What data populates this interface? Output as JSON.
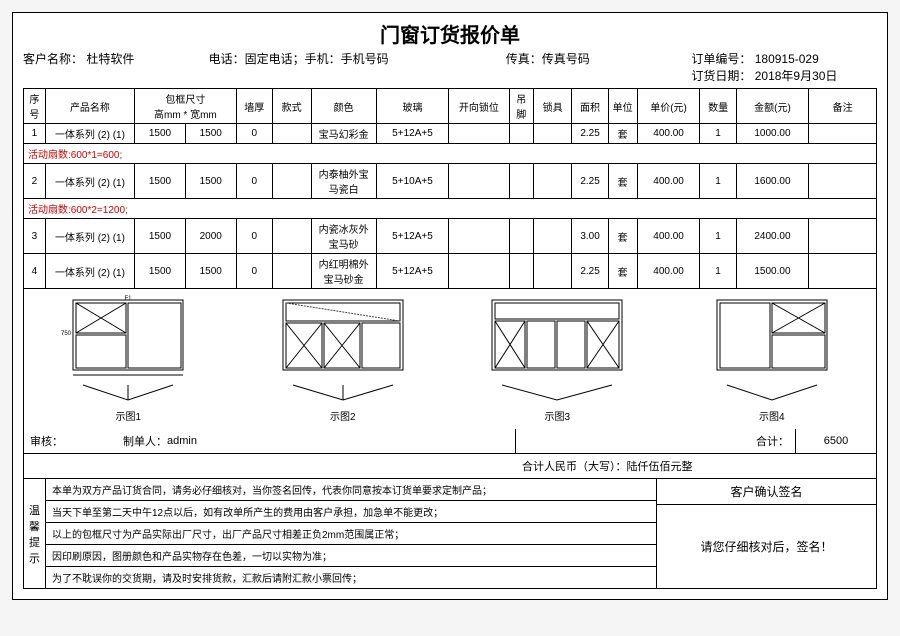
{
  "title": "门窗订货报价单",
  "header": {
    "customer_label": "客户名称：",
    "customer": "杜特软件",
    "tel_label": "电话：固定电话；手机：手机号码",
    "fax_label": "传真：传真号码",
    "order_no_label": "订单编号：",
    "order_no": "180915-029",
    "order_date_label": "订货日期：",
    "order_date": "2018年9月30日"
  },
  "columns": {
    "seq": "序号",
    "name": "产品名称",
    "frame_dim": "包框尺寸",
    "frame_dim_sub": "高mm * 宽mm",
    "wall": "墙厚",
    "style": "款式",
    "color": "颜色",
    "glass": "玻璃",
    "direction": "开向锁位",
    "foot": "吊脚",
    "lock": "锁具",
    "area": "面积",
    "unit": "单位",
    "unit_price": "单价(元)",
    "qty": "数量",
    "amount": "金额(元)",
    "remark": "备注"
  },
  "rows": [
    {
      "seq": "1",
      "name": "一体系列 (2) (1)",
      "h": "1500",
      "w": "1500",
      "wall": "0",
      "style": "",
      "color": "宝马幻彩金",
      "glass": "5+12A+5",
      "dir": "",
      "foot": "",
      "lock": "",
      "area": "2.25",
      "unit": "套",
      "price": "400.00",
      "qty": "1",
      "amount": "1000.00",
      "remark": ""
    },
    {
      "seq": "2",
      "name": "一体系列 (2) (1)",
      "h": "1500",
      "w": "1500",
      "wall": "0",
      "style": "",
      "color": "内泰柚外宝马瓷白",
      "glass": "5+10A+5",
      "dir": "",
      "foot": "",
      "lock": "",
      "area": "2.25",
      "unit": "套",
      "price": "400.00",
      "qty": "1",
      "amount": "1600.00",
      "remark": ""
    },
    {
      "seq": "3",
      "name": "一体系列 (2) (1)",
      "h": "1500",
      "w": "2000",
      "wall": "0",
      "style": "",
      "color": "内瓷冰灰外宝马砂",
      "glass": "5+12A+5",
      "dir": "",
      "foot": "",
      "lock": "",
      "area": "3.00",
      "unit": "套",
      "price": "400.00",
      "qty": "1",
      "amount": "2400.00",
      "remark": ""
    },
    {
      "seq": "4",
      "name": "一体系列 (2) (1)",
      "h": "1500",
      "w": "1500",
      "wall": "0",
      "style": "",
      "color": "内红明棉外宝马砂金",
      "glass": "5+12A+5",
      "dir": "",
      "foot": "",
      "lock": "",
      "area": "2.25",
      "unit": "套",
      "price": "400.00",
      "qty": "1",
      "amount": "1500.00",
      "remark": ""
    }
  ],
  "note1": "活动扇数:600*1=600;",
  "note2": "活动扇数:600*2=1200;",
  "diagrams": [
    "示图1",
    "示图2",
    "示图3",
    "示图4"
  ],
  "totals": {
    "total_label": "合计：",
    "total": "6500",
    "audit": "审核：",
    "maker_label": "制单人：",
    "maker": "admin",
    "rmb_label": "合计人民币（大写）：",
    "rmb": "陆仟伍佰元整"
  },
  "tips_label": "温馨提示",
  "tips": [
    "本单为双方产品订货合同，请务必仔细核对，当你签名回传，代表你同意按本订货单要求定制产品；",
    "当天下单至第二天中午12点以后，如有改单所产生的费用由客户承担，加急单不能更改；",
    "以上的包框尺寸为产品实际出厂尺寸，出厂产品尺寸相差正负2mm范围属正常；",
    "因印刷原因，图册颜色和产品实物存在色差，一切以实物为准；",
    "为了不耽误你的交货期，请及时安排货款，汇款后请附汇款小票回传；"
  ],
  "sign": {
    "confirm": "客户确认签名",
    "please": "请您仔细核对后，签名！"
  }
}
